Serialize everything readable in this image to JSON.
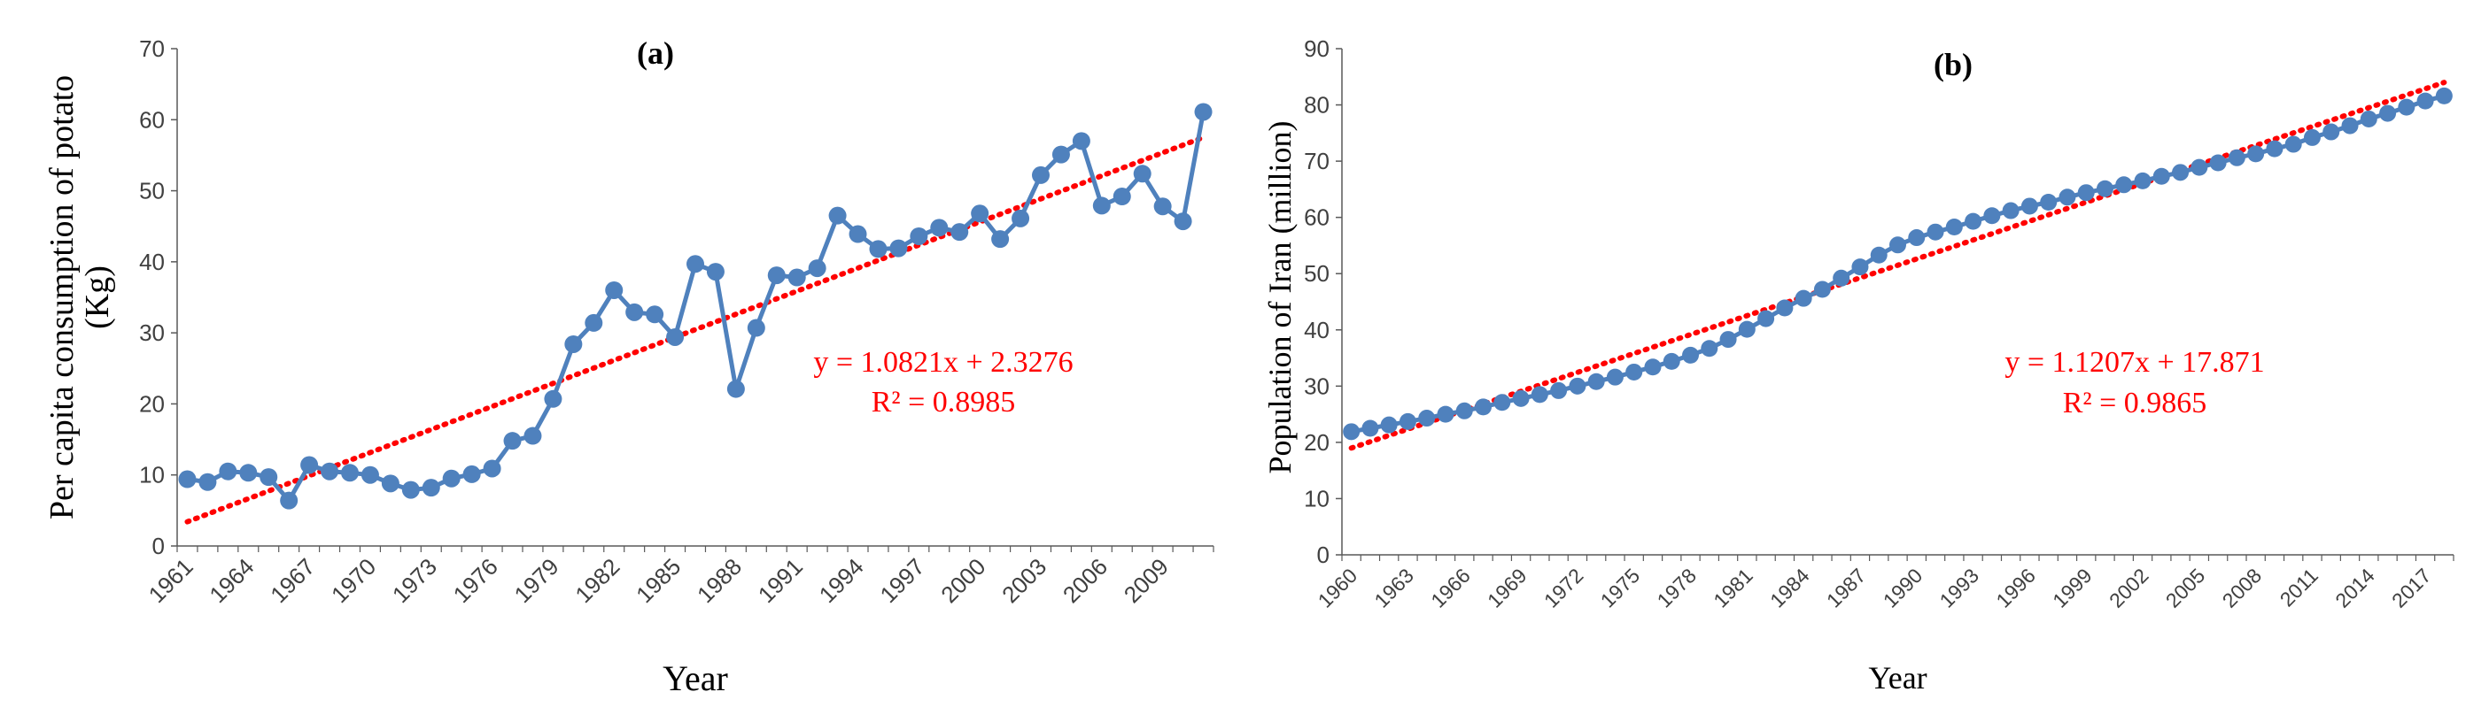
{
  "chart_data": [
    {
      "type": "line",
      "title": "(a)",
      "xlabel": "Year",
      "ylabel": "Per capita consumption of potato (Kg)",
      "ylabel_lines": [
        "Per capita consumption of potato",
        "(Kg)"
      ],
      "ylim": [
        0,
        70
      ],
      "ytick_labels": [
        "0",
        "10",
        "20",
        "30",
        "40",
        "50",
        "60",
        "70"
      ],
      "x": [
        1961,
        1962,
        1963,
        1964,
        1965,
        1966,
        1967,
        1968,
        1969,
        1970,
        1971,
        1972,
        1973,
        1974,
        1975,
        1976,
        1977,
        1978,
        1979,
        1980,
        1981,
        1982,
        1983,
        1984,
        1985,
        1986,
        1987,
        1988,
        1989,
        1990,
        1991,
        1992,
        1993,
        1994,
        1995,
        1996,
        1997,
        1998,
        1999,
        2000,
        2001,
        2002,
        2003,
        2004,
        2005,
        2006,
        2007,
        2008,
        2009,
        2010,
        2011
      ],
      "xtick_labels": [
        "1961",
        "1964",
        "1967",
        "1970",
        "1973",
        "1976",
        "1979",
        "1982",
        "1985",
        "1988",
        "1991",
        "1994",
        "1997",
        "2000",
        "2003",
        "2006",
        "2009"
      ],
      "series": [
        {
          "name": "Per capita consumption of potato",
          "color": "#4f81bd",
          "values": [
            9.4,
            9.0,
            10.5,
            10.3,
            9.7,
            6.4,
            11.4,
            10.5,
            10.3,
            10.0,
            8.8,
            7.9,
            8.2,
            9.5,
            10.1,
            10.9,
            14.8,
            15.5,
            20.7,
            28.4,
            31.4,
            36.0,
            32.9,
            32.6,
            29.4,
            39.7,
            38.6,
            22.1,
            30.7,
            38.1,
            37.8,
            39.1,
            46.5,
            43.9,
            41.8,
            41.9,
            43.6,
            44.8,
            44.2,
            46.8,
            43.2,
            46.1,
            52.2,
            55.1,
            57.0,
            47.9,
            49.2,
            52.4,
            47.8,
            45.7,
            61.1
          ]
        }
      ],
      "trendline": {
        "color": "#ff0000",
        "slope": 1.0821,
        "intercept": 2.3276,
        "equation": "y = 1.0821x + 2.3276",
        "r2": "R² = 0.8985"
      }
    },
    {
      "type": "line",
      "title": "(b)",
      "xlabel": "Year",
      "ylabel": "Population of Iran (million)",
      "ylabel_lines": [
        "Population of Iran (million)"
      ],
      "ylim": [
        0,
        90
      ],
      "ytick_labels": [
        "0",
        "10",
        "20",
        "30",
        "40",
        "50",
        "60",
        "70",
        "80",
        "90"
      ],
      "x": [
        1960,
        1961,
        1962,
        1963,
        1964,
        1965,
        1966,
        1967,
        1968,
        1969,
        1970,
        1971,
        1972,
        1973,
        1974,
        1975,
        1976,
        1977,
        1978,
        1979,
        1980,
        1981,
        1982,
        1983,
        1984,
        1985,
        1986,
        1987,
        1988,
        1989,
        1990,
        1991,
        1992,
        1993,
        1994,
        1995,
        1996,
        1997,
        1998,
        1999,
        2000,
        2001,
        2002,
        2003,
        2004,
        2005,
        2006,
        2007,
        2008,
        2009,
        2010,
        2011,
        2012,
        2013,
        2014,
        2015,
        2016,
        2017,
        2018
      ],
      "xtick_labels": [
        "1960",
        "1963",
        "1966",
        "1969",
        "1972",
        "1975",
        "1978",
        "1981",
        "1984",
        "1987",
        "1990",
        "1993",
        "1996",
        "1999",
        "2002",
        "2005",
        "2008",
        "2011",
        "2014",
        "2017"
      ],
      "series": [
        {
          "name": "Population of Iran",
          "color": "#4f81bd",
          "values": [
            21.9,
            22.5,
            23.1,
            23.7,
            24.3,
            25.0,
            25.6,
            26.3,
            27.1,
            27.8,
            28.5,
            29.2,
            30.0,
            30.8,
            31.6,
            32.5,
            33.4,
            34.4,
            35.5,
            36.7,
            38.3,
            40.1,
            42.0,
            43.9,
            45.6,
            47.2,
            49.2,
            51.2,
            53.3,
            55.1,
            56.4,
            57.4,
            58.3,
            59.3,
            60.3,
            61.2,
            62.0,
            62.7,
            63.6,
            64.4,
            65.1,
            65.8,
            66.5,
            67.3,
            68.0,
            68.9,
            69.7,
            70.6,
            71.3,
            72.2,
            73.0,
            74.2,
            75.2,
            76.3,
            77.5,
            78.5,
            79.6,
            80.7,
            81.6
          ]
        }
      ],
      "trendline": {
        "color": "#ff0000",
        "slope": 1.1207,
        "intercept": 17.871,
        "equation": "y = 1.1207x + 17.871",
        "r2": "R² = 0.9865"
      }
    }
  ]
}
